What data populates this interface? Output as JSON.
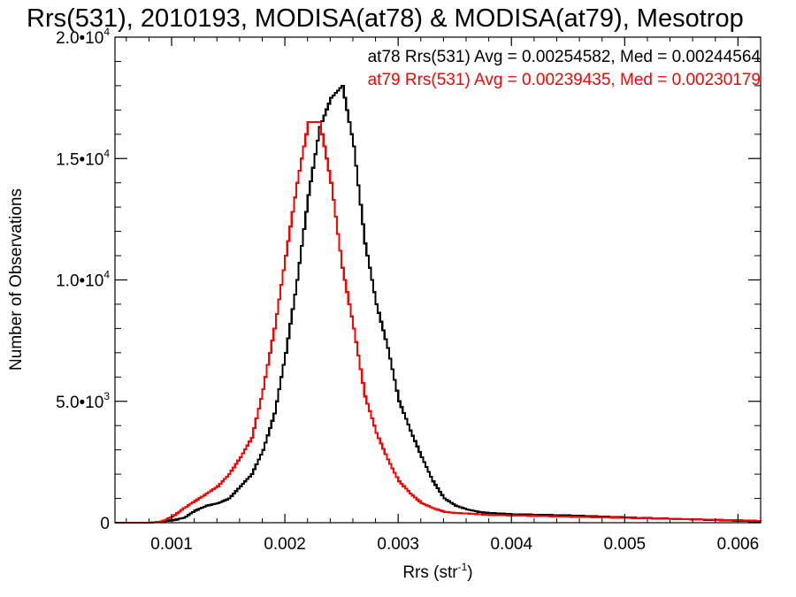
{
  "chart_data": {
    "type": "line",
    "title": "Rrs(531), 2010193, MODISA(at78) & MODISA(at79), Mesotrop",
    "xlabel": "Rrs (str",
    "xlabel_exp": "-1",
    "xlabel_close": ")",
    "ylabel": "Number of Observations",
    "xlim": [
      0.0005,
      0.0062
    ],
    "ylim": [
      0,
      20000
    ],
    "grid": false,
    "x_ticks": [
      0.001,
      0.002,
      0.003,
      0.004,
      0.005,
      0.006
    ],
    "x_tick_labels": [
      "0.001",
      "0.002",
      "0.003",
      "0.004",
      "0.005",
      "0.006"
    ],
    "y_ticks": [
      {
        "value": 0,
        "mantissa": "0",
        "exp": ""
      },
      {
        "value": 5000,
        "mantissa": "5.0•10",
        "exp": "3"
      },
      {
        "value": 10000,
        "mantissa": "1.0•10",
        "exp": "4"
      },
      {
        "value": 15000,
        "mantissa": "1.5•10",
        "exp": "4"
      },
      {
        "value": 20000,
        "mantissa": "2.0•10",
        "exp": "4"
      }
    ],
    "annotations": [
      "at78 Rrs(531) Avg = 0.00254582, Med = 0.00244564",
      "at79 Rrs(531) Avg = 0.00239435, Med = 0.00230179"
    ],
    "series": [
      {
        "color": "#000000",
        "x": [
          0.0005,
          0.0008,
          0.001,
          0.0011,
          0.0012,
          0.0013,
          0.0014,
          0.0015,
          0.0016,
          0.0017,
          0.0018,
          0.0019,
          0.002,
          0.0021,
          0.0022,
          0.0023,
          0.0024,
          0.0025,
          0.0026,
          0.0027,
          0.0028,
          0.0029,
          0.003,
          0.0031,
          0.0032,
          0.0033,
          0.0034,
          0.0035,
          0.0036,
          0.0037,
          0.0038,
          0.004,
          0.0045,
          0.005,
          0.0055,
          0.006,
          0.0062
        ],
        "y": [
          0,
          0,
          100,
          200,
          500,
          700,
          800,
          1000,
          1500,
          2000,
          3000,
          4500,
          7000,
          10000,
          13500,
          16300,
          17500,
          18000,
          15500,
          11500,
          9000,
          7200,
          5000,
          3800,
          2700,
          1700,
          1000,
          700,
          550,
          450,
          400,
          350,
          300,
          220,
          150,
          80,
          50
        ]
      },
      {
        "color": "#ff0000",
        "x": [
          0.0005,
          0.0008,
          0.0009,
          0.001,
          0.0011,
          0.0012,
          0.0013,
          0.0014,
          0.0015,
          0.0016,
          0.0017,
          0.0018,
          0.0019,
          0.002,
          0.0021,
          0.0022,
          0.0023,
          0.0024,
          0.0025,
          0.0026,
          0.0027,
          0.0028,
          0.0029,
          0.003,
          0.0031,
          0.0032,
          0.0033,
          0.0034,
          0.0035,
          0.0036,
          0.0037,
          0.0038,
          0.004,
          0.0045,
          0.005,
          0.0055,
          0.006,
          0.0062
        ],
        "y": [
          0,
          0,
          50,
          250,
          600,
          900,
          1200,
          1500,
          2000,
          2700,
          3500,
          5500,
          8000,
          11000,
          14000,
          16500,
          16500,
          14000,
          10500,
          8000,
          5200,
          3700,
          2600,
          1700,
          1200,
          800,
          600,
          450,
          400,
          380,
          350,
          320,
          300,
          250,
          200,
          150,
          100,
          70
        ]
      }
    ]
  }
}
